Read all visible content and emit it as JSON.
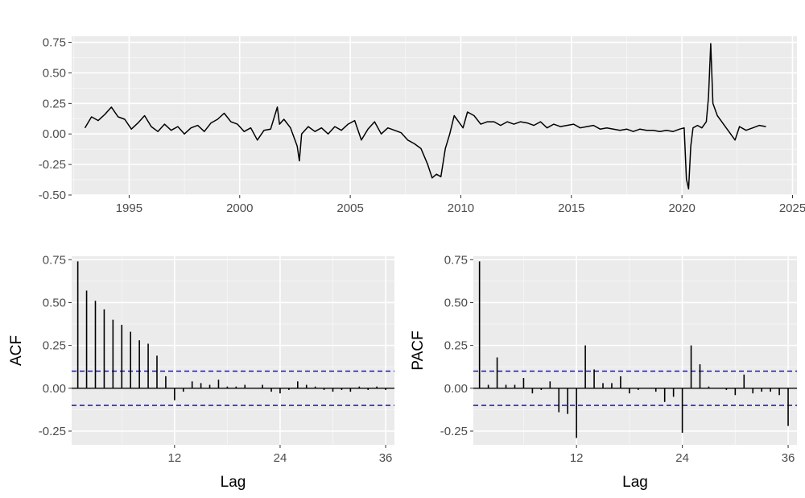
{
  "chart_data": [
    {
      "type": "line",
      "title": "",
      "xlabel": "",
      "ylabel": "",
      "xlim": [
        1992.4,
        2025.2
      ],
      "ylim": [
        -0.5,
        0.8
      ],
      "x_ticks": [
        1995,
        2000,
        2005,
        2010,
        2015,
        2020,
        2025
      ],
      "x_tick_labels": [
        "1995",
        "2000",
        "2005",
        "2010",
        "2015",
        "2020",
        "2025"
      ],
      "y_ticks": [
        -0.5,
        -0.25,
        0,
        0.25,
        0.5,
        0.75
      ],
      "y_tick_labels": [
        "-0.50",
        "-0.25",
        "0.00",
        "0.25",
        "0.50",
        "0.75"
      ],
      "grid": true,
      "line_color": "#000000",
      "series": [
        {
          "x": [
            1993.0,
            1993.3,
            1993.6,
            1993.9,
            1994.2,
            1994.5,
            1994.8,
            1995.1,
            1995.4,
            1995.7,
            1996.0,
            1996.3,
            1996.6,
            1996.9,
            1997.2,
            1997.5,
            1997.8,
            1998.1,
            1998.4,
            1998.7,
            1999.0,
            1999.3,
            1999.6,
            1999.9,
            2000.2,
            2000.5,
            2000.8,
            2001.1,
            2001.4,
            2001.7,
            2001.8,
            2002.0,
            2002.3,
            2002.6,
            2002.7,
            2002.8,
            2003.1,
            2003.4,
            2003.7,
            2004.0,
            2004.3,
            2004.6,
            2004.9,
            2005.2,
            2005.5,
            2005.8,
            2006.1,
            2006.4,
            2006.7,
            2007.0,
            2007.3,
            2007.6,
            2007.9,
            2008.2,
            2008.5,
            2008.7,
            2008.9,
            2009.1,
            2009.3,
            2009.5,
            2009.7,
            2009.9,
            2010.1,
            2010.3,
            2010.6,
            2010.9,
            2011.2,
            2011.5,
            2011.8,
            2012.1,
            2012.4,
            2012.7,
            2013.0,
            2013.3,
            2013.6,
            2013.9,
            2014.2,
            2014.5,
            2014.8,
            2015.1,
            2015.4,
            2015.7,
            2016.0,
            2016.3,
            2016.6,
            2016.9,
            2017.2,
            2017.5,
            2017.8,
            2018.1,
            2018.4,
            2018.7,
            2019.0,
            2019.3,
            2019.6,
            2019.9,
            2020.1,
            2020.2,
            2020.3,
            2020.4,
            2020.5,
            2020.7,
            2020.9,
            2021.1,
            2021.2,
            2021.3,
            2021.4,
            2021.6,
            2021.8,
            2022.0,
            2022.2,
            2022.4,
            2022.6,
            2022.9,
            2023.2,
            2023.5,
            2023.8
          ],
          "y": [
            0.05,
            0.14,
            0.11,
            0.16,
            0.22,
            0.14,
            0.12,
            0.04,
            0.09,
            0.15,
            0.06,
            0.02,
            0.08,
            0.03,
            0.06,
            0.0,
            0.05,
            0.07,
            0.02,
            0.09,
            0.12,
            0.17,
            0.1,
            0.08,
            0.02,
            0.05,
            -0.05,
            0.03,
            0.04,
            0.22,
            0.08,
            0.12,
            0.05,
            -0.1,
            -0.22,
            0.0,
            0.06,
            0.02,
            0.05,
            0.0,
            0.06,
            0.03,
            0.08,
            0.11,
            -0.05,
            0.04,
            0.1,
            0.0,
            0.05,
            0.03,
            0.01,
            -0.05,
            -0.08,
            -0.12,
            -0.25,
            -0.36,
            -0.33,
            -0.35,
            -0.12,
            0.0,
            0.15,
            0.1,
            0.05,
            0.18,
            0.15,
            0.08,
            0.1,
            0.1,
            0.07,
            0.1,
            0.08,
            0.1,
            0.09,
            0.07,
            0.1,
            0.05,
            0.08,
            0.06,
            0.07,
            0.08,
            0.05,
            0.06,
            0.07,
            0.04,
            0.05,
            0.04,
            0.03,
            0.04,
            0.02,
            0.04,
            0.03,
            0.03,
            0.02,
            0.03,
            0.02,
            0.04,
            0.05,
            -0.37,
            -0.45,
            -0.1,
            0.05,
            0.07,
            0.05,
            0.1,
            0.3,
            0.74,
            0.25,
            0.15,
            0.1,
            0.05,
            0.0,
            -0.05,
            0.06,
            0.03,
            0.05,
            0.07,
            0.06
          ]
        }
      ]
    },
    {
      "type": "bar",
      "title": "",
      "xlabel": "Lag",
      "ylabel": "ACF",
      "xlim": [
        0.3,
        37.0
      ],
      "ylim": [
        -0.33,
        0.77
      ],
      "x_ticks": [
        12,
        24,
        36
      ],
      "x_tick_labels": [
        "12",
        "24",
        "36"
      ],
      "y_ticks": [
        -0.25,
        0,
        0.25,
        0.5,
        0.75
      ],
      "y_tick_labels": [
        "-0.25",
        "0.00",
        "0.25",
        "0.50",
        "0.75"
      ],
      "grid": true,
      "confidence_bound": 0.1,
      "bound_color": "#0000cc",
      "series": [
        {
          "lags": [
            1,
            2,
            3,
            4,
            5,
            6,
            7,
            8,
            9,
            10,
            11,
            12,
            13,
            14,
            15,
            16,
            17,
            18,
            19,
            20,
            21,
            22,
            23,
            24,
            25,
            26,
            27,
            28,
            29,
            30,
            31,
            32,
            33,
            34,
            35,
            36
          ],
          "values": [
            0.74,
            0.57,
            0.51,
            0.46,
            0.4,
            0.37,
            0.33,
            0.28,
            0.26,
            0.19,
            0.07,
            -0.07,
            -0.02,
            0.04,
            0.03,
            0.02,
            0.05,
            0.01,
            0.01,
            0.02,
            0.0,
            0.02,
            -0.02,
            -0.03,
            -0.01,
            0.04,
            0.02,
            0.01,
            -0.01,
            -0.02,
            -0.01,
            -0.02,
            0.01,
            -0.01,
            0.01,
            -0.01
          ]
        }
      ]
    },
    {
      "type": "bar",
      "title": "",
      "xlabel": "Lag",
      "ylabel": "PACF",
      "xlim": [
        0.3,
        37.0
      ],
      "ylim": [
        -0.33,
        0.77
      ],
      "x_ticks": [
        12,
        24,
        36
      ],
      "x_tick_labels": [
        "12",
        "24",
        "36"
      ],
      "y_ticks": [
        -0.25,
        0,
        0.25,
        0.5,
        0.75
      ],
      "y_tick_labels": [
        "-0.25",
        "0.00",
        "0.25",
        "0.50",
        "0.75"
      ],
      "grid": true,
      "confidence_bound": 0.1,
      "bound_color": "#0000cc",
      "series": [
        {
          "lags": [
            1,
            2,
            3,
            4,
            5,
            6,
            7,
            8,
            9,
            10,
            11,
            12,
            13,
            14,
            15,
            16,
            17,
            18,
            19,
            20,
            21,
            22,
            23,
            24,
            25,
            26,
            27,
            28,
            29,
            30,
            31,
            32,
            33,
            34,
            35,
            36
          ],
          "values": [
            0.74,
            0.02,
            0.18,
            0.02,
            0.02,
            0.06,
            -0.03,
            -0.01,
            0.04,
            -0.14,
            -0.15,
            -0.29,
            0.25,
            0.11,
            0.03,
            0.03,
            0.07,
            -0.03,
            -0.01,
            0.0,
            -0.02,
            -0.08,
            -0.05,
            -0.26,
            0.25,
            0.14,
            0.01,
            0.0,
            -0.01,
            -0.04,
            0.08,
            -0.03,
            -0.02,
            -0.02,
            -0.04,
            -0.22
          ]
        }
      ]
    }
  ]
}
